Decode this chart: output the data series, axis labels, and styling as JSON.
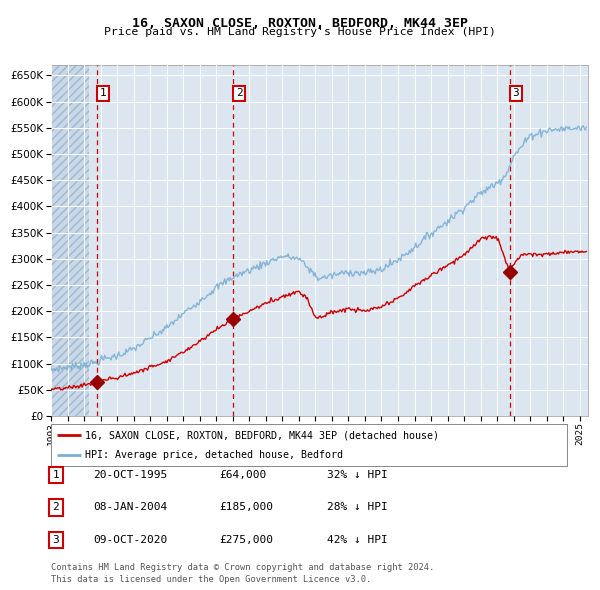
{
  "title": "16, SAXON CLOSE, ROXTON, BEDFORD, MK44 3EP",
  "subtitle": "Price paid vs. HM Land Registry's House Price Index (HPI)",
  "ylim": [
    0,
    670000
  ],
  "yticks": [
    0,
    50000,
    100000,
    150000,
    200000,
    250000,
    300000,
    350000,
    400000,
    450000,
    500000,
    550000,
    600000,
    650000
  ],
  "xlim_start": 1993.0,
  "xlim_end": 2025.5,
  "plot_bg_color": "#dce6f1",
  "grid_color": "#ffffff",
  "red_line_color": "#cc0000",
  "blue_line_color": "#7bafd4",
  "sale_marker_color": "#990000",
  "vline_color": "#cc0000",
  "sale1_x": 1995.8,
  "sale1_y": 64000,
  "sale1_label": "1",
  "sale1_date": "20-OCT-1995",
  "sale1_price": "£64,000",
  "sale1_hpi": "32% ↓ HPI",
  "sale2_x": 2004.03,
  "sale2_y": 185000,
  "sale2_label": "2",
  "sale2_date": "08-JAN-2004",
  "sale2_price": "£185,000",
  "sale2_hpi": "28% ↓ HPI",
  "sale3_x": 2020.77,
  "sale3_y": 275000,
  "sale3_label": "3",
  "sale3_date": "09-OCT-2020",
  "sale3_price": "£275,000",
  "sale3_hpi": "42% ↓ HPI",
  "legend_red_label": "16, SAXON CLOSE, ROXTON, BEDFORD, MK44 3EP (detached house)",
  "legend_blue_label": "HPI: Average price, detached house, Bedford",
  "footer1": "Contains HM Land Registry data © Crown copyright and database right 2024.",
  "footer2": "This data is licensed under the Open Government Licence v3.0.",
  "blue_kx": [
    1993,
    1994,
    1995,
    1995.8,
    1996,
    1997,
    1998,
    1999,
    2000,
    2001,
    2002,
    2003,
    2004,
    2005,
    2006,
    2007,
    2008,
    2008.7,
    2009.2,
    2010,
    2011,
    2012,
    2013,
    2014,
    2015,
    2016,
    2017,
    2018,
    2019,
    2020,
    2020.5,
    2021,
    2021.5,
    2022,
    2023,
    2024,
    2025.3
  ],
  "blue_ky": [
    88000,
    93000,
    98000,
    102000,
    107000,
    115000,
    128000,
    148000,
    168000,
    195000,
    220000,
    245000,
    265000,
    278000,
    292000,
    305000,
    300000,
    278000,
    262000,
    268000,
    275000,
    272000,
    280000,
    298000,
    322000,
    348000,
    372000,
    398000,
    425000,
    445000,
    460000,
    495000,
    515000,
    535000,
    545000,
    548000,
    550000
  ],
  "red_kx": [
    1993,
    1994,
    1995,
    1995.8,
    1996,
    1997,
    1998,
    1999,
    2000,
    2001,
    2002,
    2003,
    2004.03,
    2005,
    2006,
    2007,
    2008,
    2008.5,
    2009,
    2009.5,
    2010,
    2011,
    2012,
    2013,
    2014,
    2015,
    2016,
    2017,
    2018,
    2018.8,
    2019,
    2019.5,
    2020,
    2020.77,
    2021,
    2021.5,
    2022,
    2023,
    2024,
    2025.3
  ],
  "red_ky": [
    50000,
    53000,
    59000,
    64000,
    67000,
    73000,
    82000,
    93000,
    105000,
    122000,
    143000,
    165000,
    185000,
    200000,
    215000,
    228000,
    238000,
    225000,
    188000,
    190000,
    198000,
    204000,
    200000,
    208000,
    224000,
    248000,
    268000,
    288000,
    308000,
    330000,
    338000,
    342000,
    340000,
    275000,
    292000,
    308000,
    310000,
    308000,
    312000,
    315000
  ]
}
